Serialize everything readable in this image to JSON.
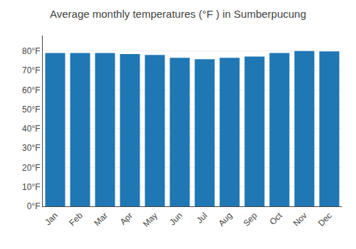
{
  "chart_data": {
    "type": "bar",
    "title": "Average monthly temperatures (°F ) in Sumberpucung",
    "categories": [
      "Jan",
      "Feb",
      "Mar",
      "Apr",
      "May",
      "Jun",
      "Jul",
      "Aug",
      "Sep",
      "Oct",
      "Nov",
      "Dec"
    ],
    "values": [
      79.0,
      79.0,
      79.0,
      78.5,
      78.0,
      76.5,
      75.8,
      76.5,
      77.2,
      79.0,
      80.0,
      79.8
    ],
    "ylim": [
      0,
      88
    ],
    "yticks": [
      {
        "value": 0,
        "label": "0°F"
      },
      {
        "value": 10,
        "label": "10°F"
      },
      {
        "value": 20,
        "label": "20°F"
      },
      {
        "value": 30,
        "label": "30°F"
      },
      {
        "value": 40,
        "label": "40°F"
      },
      {
        "value": 50,
        "label": "50°F"
      },
      {
        "value": 60,
        "label": "60°F"
      },
      {
        "value": 70,
        "label": "70°F"
      },
      {
        "value": 80,
        "label": "80°F"
      }
    ],
    "grid": true
  }
}
